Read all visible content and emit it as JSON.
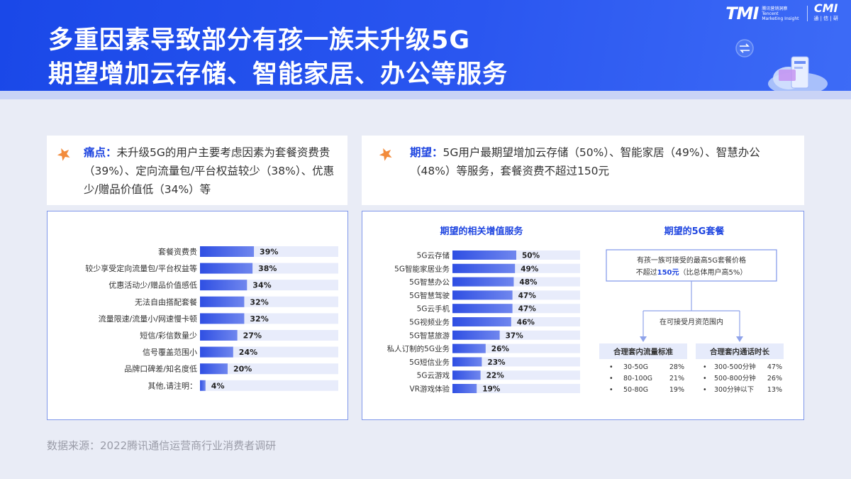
{
  "header": {
    "title_line1": "多重因素导致部分有孩一族未升级5G",
    "title_line2": "期望增加云存储、智能家居、办公等服务",
    "brand_tmi": "TMI",
    "brand_tmi_sub1": "腾讯营销洞察",
    "brand_tmi_sub2": "Tencent",
    "brand_tmi_sub3": "Marketing Insight",
    "brand_cmi": "CMI",
    "brand_cmi_sub": "通 | 信 | 研"
  },
  "pain": {
    "label": "痛点：",
    "text": "未升级5G的用户主要考虑因素为套餐资费贵（39%）、定向流量包/平台权益较少（38%）、优惠少/赠品价值低（34%）等",
    "icon": "star-pin-icon",
    "accent": "#1e45e0",
    "pin_color": "#f28b3c"
  },
  "expect": {
    "label": "期望：",
    "text": "5G用户最期望增加云存储（50%）、智能家居（49%）、智慧办公（48%）等服务，套餐资费不超过150元"
  },
  "colors": {
    "bar_dark": "#2f4fe3",
    "bar_light": "#e8ecfb",
    "border": "#7f97ea"
  },
  "chart_data": [
    {
      "type": "bar",
      "orientation": "horizontal",
      "title": "",
      "categories": [
        "套餐资费贵",
        "较少享受定向流量包/平台权益等",
        "优惠活动少/赠品价值感低",
        "无法自由搭配套餐",
        "流量限速/流量小/网速慢卡顿",
        "短信/彩信数量少",
        "信号覆盖范围小",
        "品牌口碑差/知名度低",
        "其他,请注明："
      ],
      "values": [
        39,
        38,
        34,
        32,
        32,
        27,
        24,
        20,
        4
      ],
      "value_labels": [
        "39%",
        "38%",
        "34%",
        "32%",
        "32%",
        "27%",
        "24%",
        "20%",
        "4%"
      ],
      "xlim": [
        0,
        100
      ]
    },
    {
      "type": "bar",
      "orientation": "horizontal",
      "title": "期望的相关增值服务",
      "categories": [
        "5G云存储",
        "5G智能家居业务",
        "5G智慧办公",
        "5G智慧驾驶",
        "5G云手机",
        "5G视频业务",
        "5G智慧旅游",
        "私人订制的5G业务",
        "5G短信业务",
        "5G云游戏",
        "VR游戏体验"
      ],
      "values": [
        50,
        49,
        48,
        47,
        47,
        46,
        37,
        26,
        23,
        22,
        19
      ],
      "value_labels": [
        "50%",
        "49%",
        "48%",
        "47%",
        "47%",
        "46%",
        "37%",
        "26%",
        "23%",
        "22%",
        "19%"
      ],
      "xlim": [
        0,
        100
      ]
    },
    {
      "type": "table",
      "title": "期望的5G套餐",
      "top_box_line1": "有孩一族可接受的最高5G套餐价格",
      "top_box_line2_pre": "不超过",
      "top_box_line2_value": "150元",
      "top_box_line2_post": "（比总体用户高5%）",
      "connector_label": "在可接受月资范围内",
      "columns": [
        {
          "header": "合理套内流量标准",
          "rows": [
            {
              "bullet": "•",
              "label": "30-50G",
              "value": "28%"
            },
            {
              "bullet": "•",
              "label": "80-100G",
              "value": "21%"
            },
            {
              "bullet": "•",
              "label": "50-80G",
              "value": "19%"
            }
          ]
        },
        {
          "header": "合理套内通话时长",
          "rows": [
            {
              "bullet": "•",
              "label": "300-500分钟",
              "value": "47%"
            },
            {
              "bullet": "•",
              "label": "500-800分钟",
              "value": "26%"
            },
            {
              "bullet": "•",
              "label": "300分钟以下",
              "value": "13%"
            }
          ]
        }
      ]
    }
  ],
  "footer": {
    "source": "数据来源：2022腾讯通信运营商行业消费者调研"
  }
}
